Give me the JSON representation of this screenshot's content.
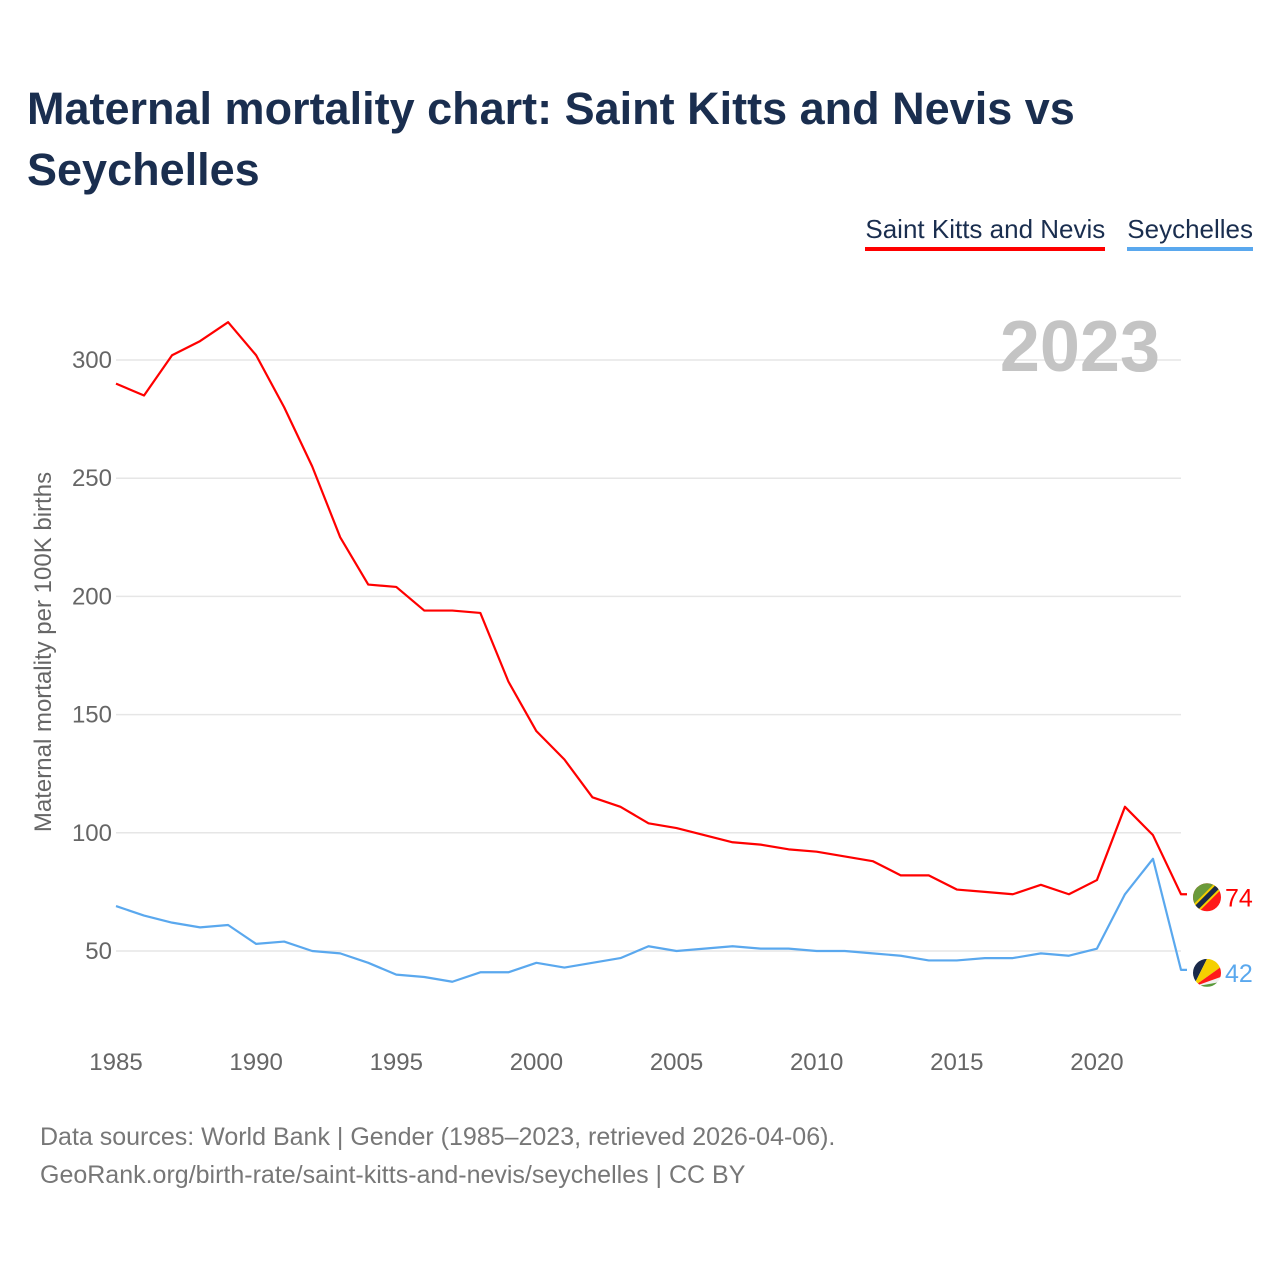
{
  "chart_data": {
    "type": "line",
    "title": "Maternal mortality chart: Saint Kitts and Nevis vs Seychelles",
    "ylabel": "Maternal mortality per 100K births",
    "xlabel": "",
    "year_label": "2023",
    "x": [
      1985,
      1986,
      1987,
      1988,
      1989,
      1990,
      1991,
      1992,
      1993,
      1994,
      1995,
      1996,
      1997,
      1998,
      1999,
      2000,
      2001,
      2002,
      2003,
      2004,
      2005,
      2006,
      2007,
      2008,
      2009,
      2010,
      2011,
      2012,
      2013,
      2014,
      2015,
      2016,
      2017,
      2018,
      2019,
      2020,
      2021,
      2022,
      2023
    ],
    "series": [
      {
        "name": "Saint Kitts and Nevis",
        "color": "#ff0000",
        "end_label": "74",
        "values": [
          290,
          285,
          302,
          308,
          316,
          302,
          280,
          255,
          225,
          205,
          204,
          194,
          194,
          193,
          164,
          143,
          131,
          115,
          111,
          104,
          102,
          99,
          96,
          95,
          93,
          92,
          90,
          88,
          82,
          82,
          76,
          75,
          74,
          78,
          74,
          80,
          111,
          99,
          74
        ]
      },
      {
        "name": "Seychelles",
        "color": "#5aa8ee",
        "end_label": "42",
        "values": [
          69,
          65,
          62,
          60,
          61,
          53,
          54,
          50,
          49,
          45,
          40,
          39,
          37,
          41,
          41,
          45,
          43,
          45,
          47,
          52,
          50,
          51,
          52,
          51,
          51,
          50,
          50,
          49,
          48,
          46,
          46,
          47,
          47,
          49,
          48,
          51,
          74,
          89,
          42
        ]
      }
    ],
    "yticks": [
      50,
      100,
      150,
      200,
      250,
      300
    ],
    "xticks": [
      1985,
      1990,
      1995,
      2000,
      2005,
      2010,
      2015,
      2020
    ],
    "ylim": [
      25,
      330
    ],
    "xlim": [
      1985,
      2023
    ],
    "grid": true,
    "legend_position": "top-right"
  },
  "footer": {
    "line1": "Data sources: World Bank | Gender (1985–2023, retrieved 2026-04-06).",
    "line2": "GeoRank.org/birth-rate/saint-kitts-and-nevis/seychelles | CC BY"
  }
}
